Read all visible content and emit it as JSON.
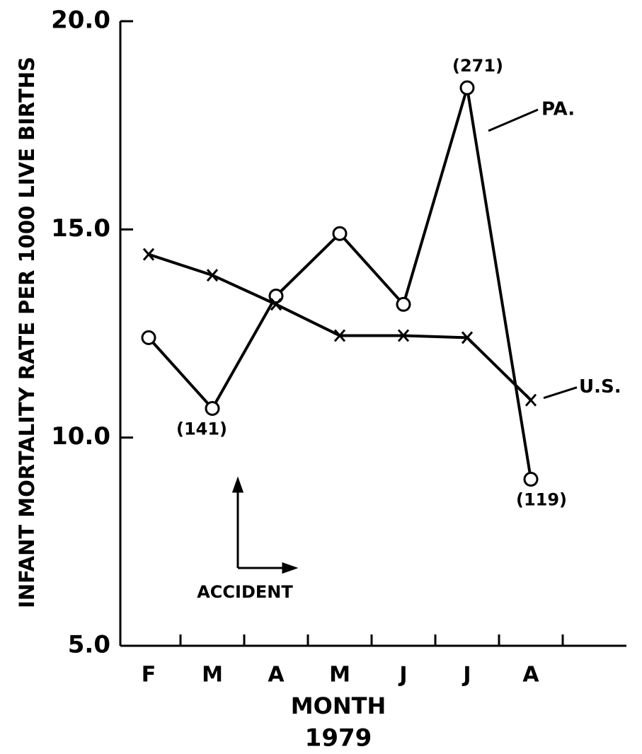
{
  "chart_data": {
    "type": "line",
    "ylabel": "INFANT MORTALITY RATE PER 1000 LIVE BIRTHS",
    "xlabel": "MONTH",
    "xsublabel": "1979",
    "annotation": "ACCIDENT",
    "categories": [
      "F",
      "M",
      "A",
      "M",
      "J",
      "J",
      "A"
    ],
    "series": [
      {
        "name": "PA.",
        "color": "#000000",
        "marker": "o",
        "values": [
          12.4,
          10.7,
          13.4,
          14.9,
          13.2,
          18.4,
          9.0
        ],
        "point_labels": [
          null,
          "(141)",
          null,
          null,
          null,
          "(271)",
          "(119)"
        ]
      },
      {
        "name": "U.S.",
        "color": "#000000",
        "marker": "x",
        "values": [
          14.4,
          13.9,
          13.2,
          12.45,
          12.45,
          12.4,
          10.9
        ]
      }
    ],
    "ylim": [
      5,
      20
    ],
    "yticks": [
      {
        "value": 5,
        "label": "5.0"
      },
      {
        "value": 10,
        "label": "10.0"
      },
      {
        "value": 15,
        "label": "15.0"
      },
      {
        "value": 20,
        "label": "20.0"
      }
    ],
    "grid": false
  }
}
